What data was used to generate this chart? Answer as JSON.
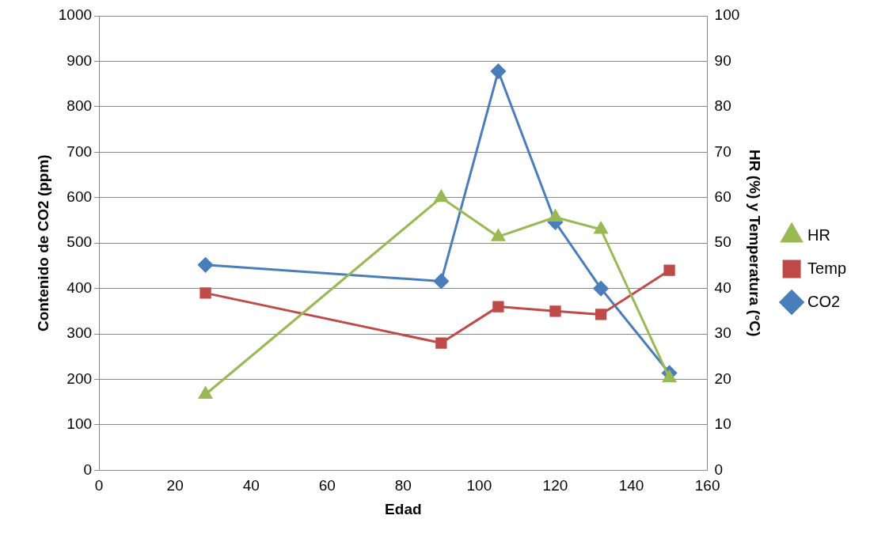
{
  "chart_data": {
    "type": "line",
    "xlabel": "Edad",
    "ylabel": "Contenido de CO2 (ppm)",
    "y2label": "HR (%) y Temperatura (°C)",
    "xlim": [
      0,
      160
    ],
    "xticks": [
      0,
      20,
      40,
      60,
      80,
      100,
      120,
      140,
      160
    ],
    "ylim": [
      0,
      1000
    ],
    "yticks": [
      0,
      100,
      200,
      300,
      400,
      500,
      600,
      700,
      800,
      900,
      1000
    ],
    "y2lim": [
      0,
      100
    ],
    "y2ticks": [
      0,
      10,
      20,
      30,
      40,
      50,
      60,
      70,
      80,
      90,
      100
    ],
    "grid": "y",
    "legend": "right",
    "series": [
      {
        "name": "CO2",
        "color": "#4a7ebb",
        "marker": "diamond",
        "x": [
          28,
          90,
          105,
          120,
          132,
          150
        ],
        "values": [
          452,
          416,
          878,
          546,
          400,
          214
        ]
      },
      {
        "name": "Temp",
        "color": "#be4b48",
        "marker": "square",
        "axis": "y2",
        "x": [
          28,
          90,
          105,
          120,
          132,
          150
        ],
        "values": [
          39,
          28,
          36,
          35,
          34.3,
          44
        ]
      },
      {
        "name": "HR",
        "color": "#98b954",
        "marker": "triangle",
        "axis": "y2",
        "x": [
          28,
          90,
          105,
          120,
          132,
          150
        ],
        "values": [
          16.7,
          60,
          51.4,
          55.7,
          53,
          20.3
        ]
      }
    ]
  }
}
